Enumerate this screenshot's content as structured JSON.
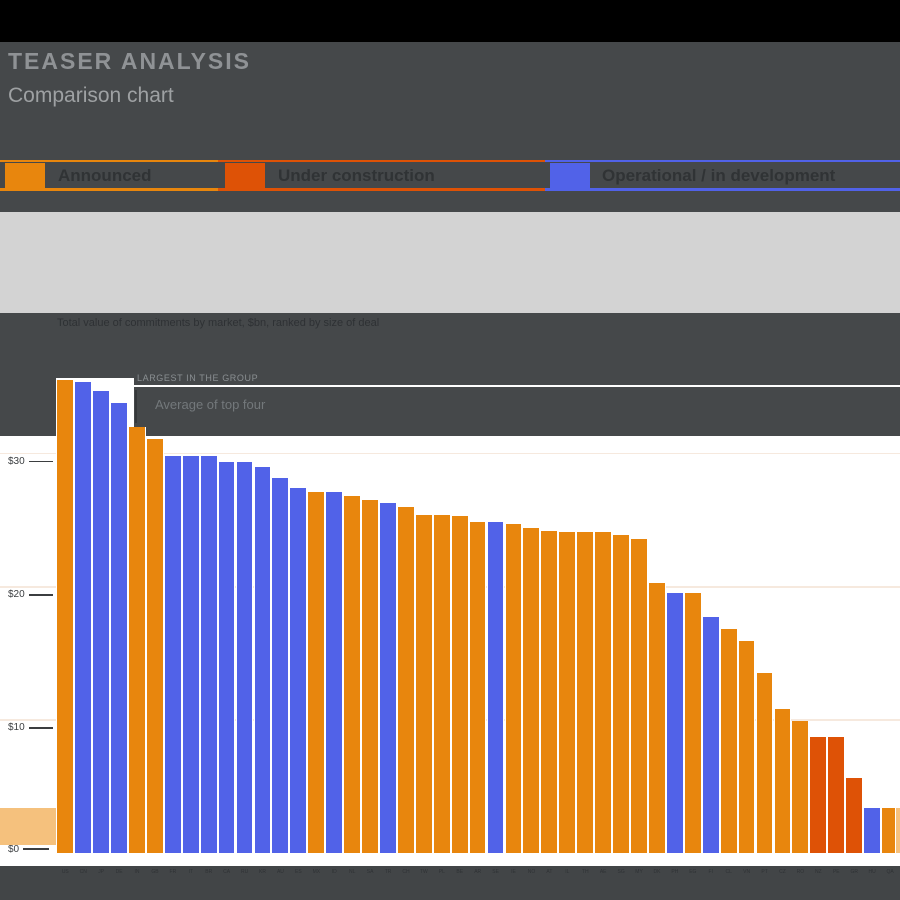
{
  "header": {
    "title": "TEASER ANALYSIS",
    "subtitle": "Comparison chart"
  },
  "legend": {
    "items": [
      {
        "label": "Announced",
        "color": "#E8860D"
      },
      {
        "label": "Under construction",
        "color": "#DE5206"
      },
      {
        "label": "Operational / in development",
        "color": "#5162E8"
      }
    ]
  },
  "chart_data": {
    "type": "bar",
    "title": "Total value of commitments by market, $bn, ranked by size of deal",
    "ylabel": "",
    "xlabel": "",
    "ylim": [
      0,
      35
    ],
    "grid": "horizontal, pale",
    "legend_position": "top",
    "annotation": {
      "line1": "LARGEST IN THE GROUP",
      "line2": "Average of top four"
    },
    "colors": {
      "orange": "#E8860D",
      "darkorange": "#DE5206",
      "blue": "#5162E8",
      "peach": "#F5C17D"
    },
    "y_axis": {
      "ticks": [
        {
          "label": "$30",
          "value": 30
        },
        {
          "label": "$20",
          "value": 20
        },
        {
          "label": "$10",
          "value": 10
        },
        {
          "label": "$0",
          "value": 0
        }
      ]
    },
    "categories": [
      "US",
      "CN",
      "JP",
      "DE",
      "IN",
      "GB",
      "FR",
      "IT",
      "BR",
      "CA",
      "RU",
      "KR",
      "AU",
      "ES",
      "MX",
      "ID",
      "NL",
      "SA",
      "TR",
      "CH",
      "TW",
      "PL",
      "BE",
      "AR",
      "SE",
      "IE",
      "NO",
      "AT",
      "IL",
      "TH",
      "AE",
      "SG",
      "MY",
      "DK",
      "PH",
      "EG",
      "FI",
      "CL",
      "VN",
      "PT",
      "CZ",
      "RO",
      "NZ",
      "PE",
      "GR",
      "HU",
      "QA",
      ""
    ],
    "bars": [
      {
        "v": 35.5,
        "c": "orange"
      },
      {
        "v": 35.4,
        "c": "blue"
      },
      {
        "v": 34.7,
        "c": "blue"
      },
      {
        "v": 33.8,
        "c": "blue"
      },
      {
        "v": 32.0,
        "c": "orange"
      },
      {
        "v": 31.1,
        "c": "orange"
      },
      {
        "v": 29.8,
        "c": "blue"
      },
      {
        "v": 29.8,
        "c": "blue"
      },
      {
        "v": 29.8,
        "c": "blue"
      },
      {
        "v": 29.4,
        "c": "blue"
      },
      {
        "v": 29.4,
        "c": "blue"
      },
      {
        "v": 29.0,
        "c": "blue"
      },
      {
        "v": 28.2,
        "c": "blue"
      },
      {
        "v": 27.4,
        "c": "blue"
      },
      {
        "v": 27.1,
        "c": "orange"
      },
      {
        "v": 27.1,
        "c": "blue"
      },
      {
        "v": 26.8,
        "c": "orange"
      },
      {
        "v": 26.5,
        "c": "orange"
      },
      {
        "v": 26.3,
        "c": "blue"
      },
      {
        "v": 26.0,
        "c": "orange"
      },
      {
        "v": 25.4,
        "c": "orange"
      },
      {
        "v": 25.4,
        "c": "orange"
      },
      {
        "v": 25.3,
        "c": "orange"
      },
      {
        "v": 24.9,
        "c": "orange"
      },
      {
        "v": 24.9,
        "c": "blue"
      },
      {
        "v": 24.7,
        "c": "orange"
      },
      {
        "v": 24.4,
        "c": "orange"
      },
      {
        "v": 24.2,
        "c": "orange"
      },
      {
        "v": 24.1,
        "c": "orange"
      },
      {
        "v": 24.1,
        "c": "orange"
      },
      {
        "v": 24.1,
        "c": "orange"
      },
      {
        "v": 23.9,
        "c": "orange"
      },
      {
        "v": 23.6,
        "c": "orange"
      },
      {
        "v": 20.3,
        "c": "orange"
      },
      {
        "v": 19.5,
        "c": "blue"
      },
      {
        "v": 19.5,
        "c": "orange"
      },
      {
        "v": 17.7,
        "c": "blue"
      },
      {
        "v": 16.8,
        "c": "orange"
      },
      {
        "v": 15.9,
        "c": "orange"
      },
      {
        "v": 13.5,
        "c": "orange"
      },
      {
        "v": 10.8,
        "c": "orange"
      },
      {
        "v": 9.9,
        "c": "orange"
      },
      {
        "v": 8.7,
        "c": "darkorange"
      },
      {
        "v": 8.7,
        "c": "darkorange"
      },
      {
        "v": 5.6,
        "c": "darkorange"
      },
      {
        "v": 3.4,
        "c": "blue"
      },
      {
        "v": 3.4,
        "c": "orange"
      },
      {
        "v": 3.4,
        "c": "peach"
      }
    ]
  }
}
